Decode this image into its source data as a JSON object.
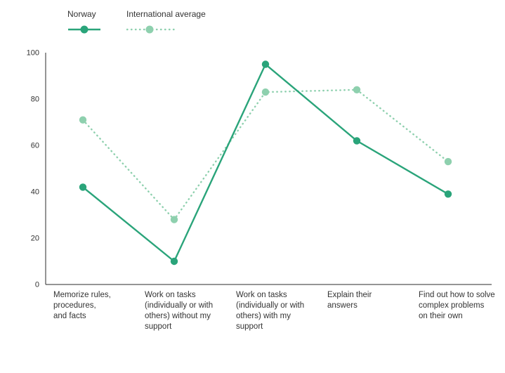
{
  "chart_data": {
    "type": "line",
    "categories": [
      "Memorize rules,\nprocedures,\nand facts",
      "Work on tasks\n(individually or with\nothers) without my\nsupport",
      "Work on tasks\n(individually or with\nothers) with my\nsupport",
      "Explain their\nanswers",
      "Find out how to solve\ncomplex problems\non their own"
    ],
    "series": [
      {
        "name": "Norway",
        "values": [
          42,
          10,
          95,
          62,
          39
        ],
        "color": "#2aa47a",
        "line_style": "solid"
      },
      {
        "name": "International average",
        "values": [
          71,
          28,
          83,
          84,
          53
        ],
        "color": "#8ed0ae",
        "line_style": "dotted"
      }
    ],
    "title": "",
    "xlabel": "",
    "ylabel": "",
    "ylim": [
      0,
      100
    ],
    "ytick_step": 20,
    "yticks": [
      "0",
      "20",
      "40",
      "60",
      "80",
      "100"
    ],
    "grid": false,
    "legend_position": "top-left"
  },
  "axis": {
    "color": "#2b2b2b",
    "label_color": "#333333"
  }
}
